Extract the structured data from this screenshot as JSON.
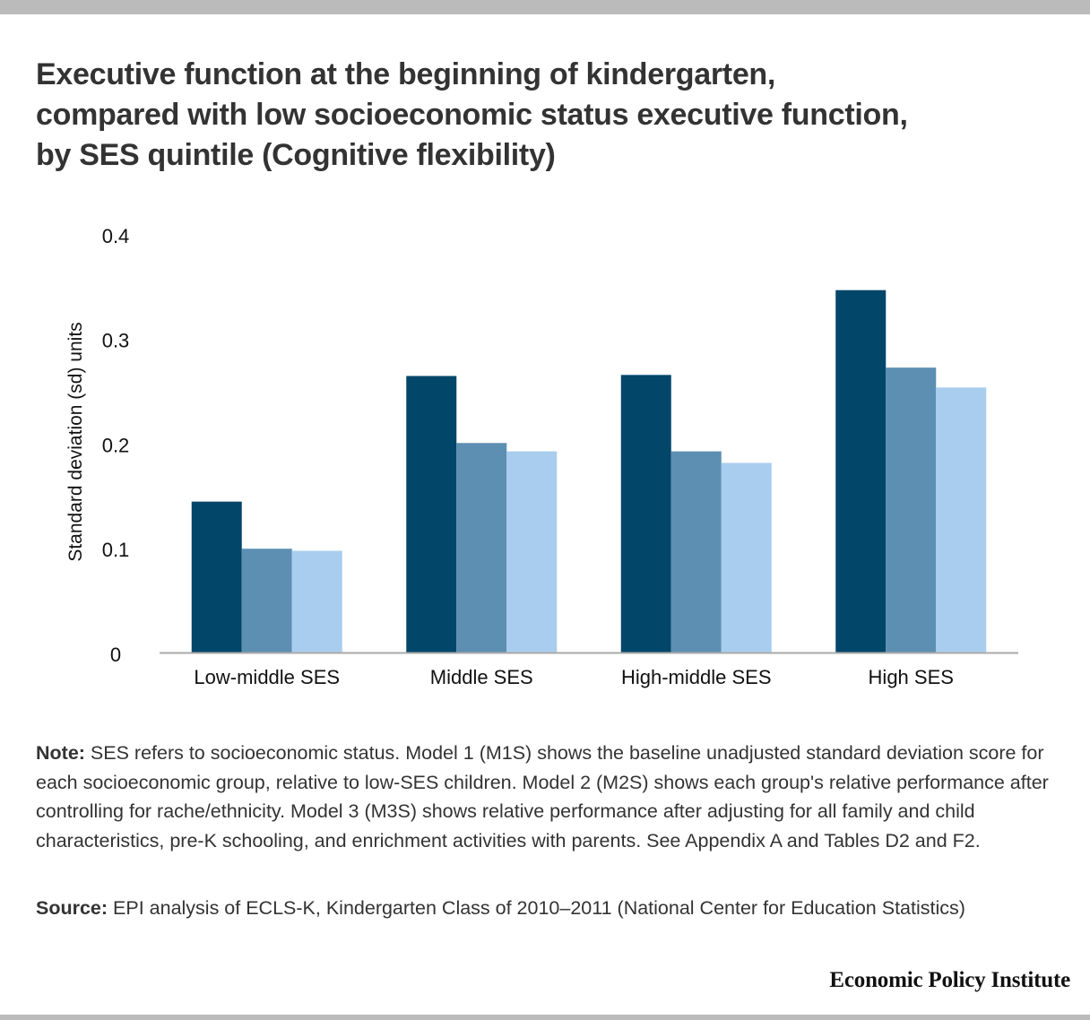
{
  "title_lines": [
    "Executive function at the beginning of kindergarten,",
    "compared with low socioeconomic status executive function,",
    "by SES quintile (Cognitive flexibility)"
  ],
  "chart_data": {
    "type": "bar",
    "title": "Executive function at the beginning of kindergarten, compared with low socioeconomic status executive function, by SES quintile (Cognitive flexibility)",
    "xlabel": "",
    "ylabel": "Standard deviation (sd) units",
    "ylim": [
      0,
      0.4
    ],
    "yticks": [
      "0",
      "0.1",
      "0.2",
      "0.3",
      "0.4"
    ],
    "ytick_values": [
      0,
      0.1,
      0.2,
      0.3,
      0.4
    ],
    "grid": false,
    "legend": "none",
    "categories": [
      "Low-middle SES",
      "Middle SES",
      "High-middle SES",
      "High SES"
    ],
    "series": [
      {
        "name": "M1S",
        "color": "#02466a",
        "values": [
          0.145,
          0.265,
          0.266,
          0.347
        ]
      },
      {
        "name": "M2S",
        "color": "#5d8fb3",
        "values": [
          0.1,
          0.201,
          0.193,
          0.273
        ]
      },
      {
        "name": "M3S",
        "color": "#a9cdef",
        "values": [
          0.098,
          0.193,
          0.182,
          0.254
        ]
      }
    ]
  },
  "note": {
    "label": "Note:",
    "text": " SES refers to socioeconomic status. Model 1 (M1S) shows the baseline unadjusted standard deviation score for each socioeconomic group, relative to low-SES children. Model 2 (M2S) shows each group's relative performance after controlling for rache/ethnicity. Model 3 (M3S) shows relative performance after adjusting for all family and child characteristics, pre-K schooling, and enrichment activities with parents. See Appendix A and Tables D2 and F2."
  },
  "source": {
    "label": "Source:",
    "text": " EPI analysis of ECLS-K, Kindergarten Class of 2010–2011 (National Center for Education Statistics)"
  },
  "brand": "Economic Policy Institute",
  "colors": {
    "axis": "#aaaaaa",
    "frame_bar": "#bbbbbb"
  }
}
